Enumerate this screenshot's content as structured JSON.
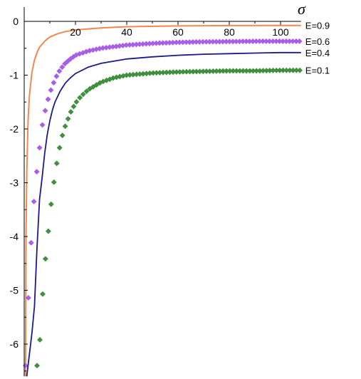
{
  "chart_data": {
    "type": "line",
    "title": "",
    "xlabel": "σ",
    "ylabel": "",
    "xlim": [
      0,
      108
    ],
    "ylim": [
      -6.6,
      0
    ],
    "xticks": [
      20,
      40,
      60,
      80,
      100
    ],
    "yticks": [
      0,
      -1,
      -2,
      -3,
      -4,
      -5,
      -6
    ],
    "grid": false,
    "legend_placement": "right, at line ends",
    "series": [
      {
        "name": "E=0.9",
        "style": "line",
        "color": "#f4874c",
        "points": [
          [
            0.5,
            -6.6
          ],
          [
            0.7,
            -4.0
          ],
          [
            1,
            -2.85
          ],
          [
            1.5,
            -1.85
          ],
          [
            2,
            -1.4
          ],
          [
            3,
            -0.95
          ],
          [
            4,
            -0.72
          ],
          [
            5,
            -0.58
          ],
          [
            6,
            -0.48
          ],
          [
            8,
            -0.37
          ],
          [
            10,
            -0.29
          ],
          [
            13,
            -0.23
          ],
          [
            16,
            -0.19
          ],
          [
            20,
            -0.16
          ],
          [
            30,
            -0.12
          ],
          [
            40,
            -0.1
          ],
          [
            60,
            -0.085
          ],
          [
            80,
            -0.078
          ],
          [
            108,
            -0.075
          ]
        ]
      },
      {
        "name": "E=0.6",
        "style": "markers",
        "color": "#a85ee6",
        "points": [
          [
            0.5,
            -6.4
          ],
          [
            1,
            -5.8
          ],
          [
            1.5,
            -5.3
          ],
          [
            2,
            -4.5
          ],
          [
            3,
            -3.95
          ],
          [
            4,
            -3.2
          ],
          [
            5,
            -2.75
          ],
          [
            6,
            -2.35
          ],
          [
            7,
            -1.95
          ],
          [
            8,
            -1.7
          ],
          [
            9,
            -1.5
          ],
          [
            10,
            -1.33
          ],
          [
            11,
            -1.2
          ],
          [
            12,
            -1.08
          ],
          [
            13,
            -0.98
          ],
          [
            14,
            -0.9
          ],
          [
            16,
            -0.78
          ],
          [
            18,
            -0.7
          ],
          [
            20,
            -0.63
          ],
          [
            25,
            -0.55
          ],
          [
            30,
            -0.5
          ],
          [
            40,
            -0.44
          ],
          [
            50,
            -0.41
          ],
          [
            60,
            -0.39
          ],
          [
            70,
            -0.38
          ],
          [
            80,
            -0.375
          ],
          [
            90,
            -0.37
          ],
          [
            100,
            -0.37
          ],
          [
            108,
            -0.37
          ]
        ]
      },
      {
        "name": "E=0.4",
        "style": "line",
        "color": "#1a1a8c",
        "points": [
          [
            1,
            -6.6
          ],
          [
            3,
            -5.8
          ],
          [
            4,
            -5.3
          ],
          [
            5,
            -4.2
          ],
          [
            6,
            -3.3
          ],
          [
            7,
            -2.9
          ],
          [
            8,
            -2.45
          ],
          [
            9,
            -2.1
          ],
          [
            10,
            -1.85
          ],
          [
            11,
            -1.65
          ],
          [
            12,
            -1.5
          ],
          [
            14,
            -1.3
          ],
          [
            16,
            -1.15
          ],
          [
            18,
            -1.05
          ],
          [
            20,
            -0.97
          ],
          [
            25,
            -0.85
          ],
          [
            30,
            -0.78
          ],
          [
            40,
            -0.7
          ],
          [
            50,
            -0.66
          ],
          [
            60,
            -0.63
          ],
          [
            70,
            -0.61
          ],
          [
            80,
            -0.6
          ],
          [
            90,
            -0.59
          ],
          [
            100,
            -0.58
          ],
          [
            108,
            -0.58
          ]
        ]
      },
      {
        "name": "E=0.1",
        "style": "markers",
        "color": "#3f8f3f",
        "points": [
          [
            5,
            -6.4
          ],
          [
            6,
            -6.0
          ],
          [
            7,
            -5.2
          ],
          [
            8,
            -4.55
          ],
          [
            9,
            -4.1
          ],
          [
            10,
            -3.6
          ],
          [
            11,
            -3.2
          ],
          [
            12,
            -2.85
          ],
          [
            13,
            -2.55
          ],
          [
            14,
            -2.3
          ],
          [
            15,
            -2.1
          ],
          [
            16,
            -1.95
          ],
          [
            18,
            -1.7
          ],
          [
            20,
            -1.52
          ],
          [
            22,
            -1.4
          ],
          [
            25,
            -1.27
          ],
          [
            30,
            -1.13
          ],
          [
            35,
            -1.05
          ],
          [
            40,
            -1.0
          ],
          [
            50,
            -0.96
          ],
          [
            60,
            -0.94
          ],
          [
            70,
            -0.93
          ],
          [
            80,
            -0.92
          ],
          [
            90,
            -0.92
          ],
          [
            100,
            -0.91
          ],
          [
            108,
            -0.91
          ]
        ]
      }
    ]
  }
}
